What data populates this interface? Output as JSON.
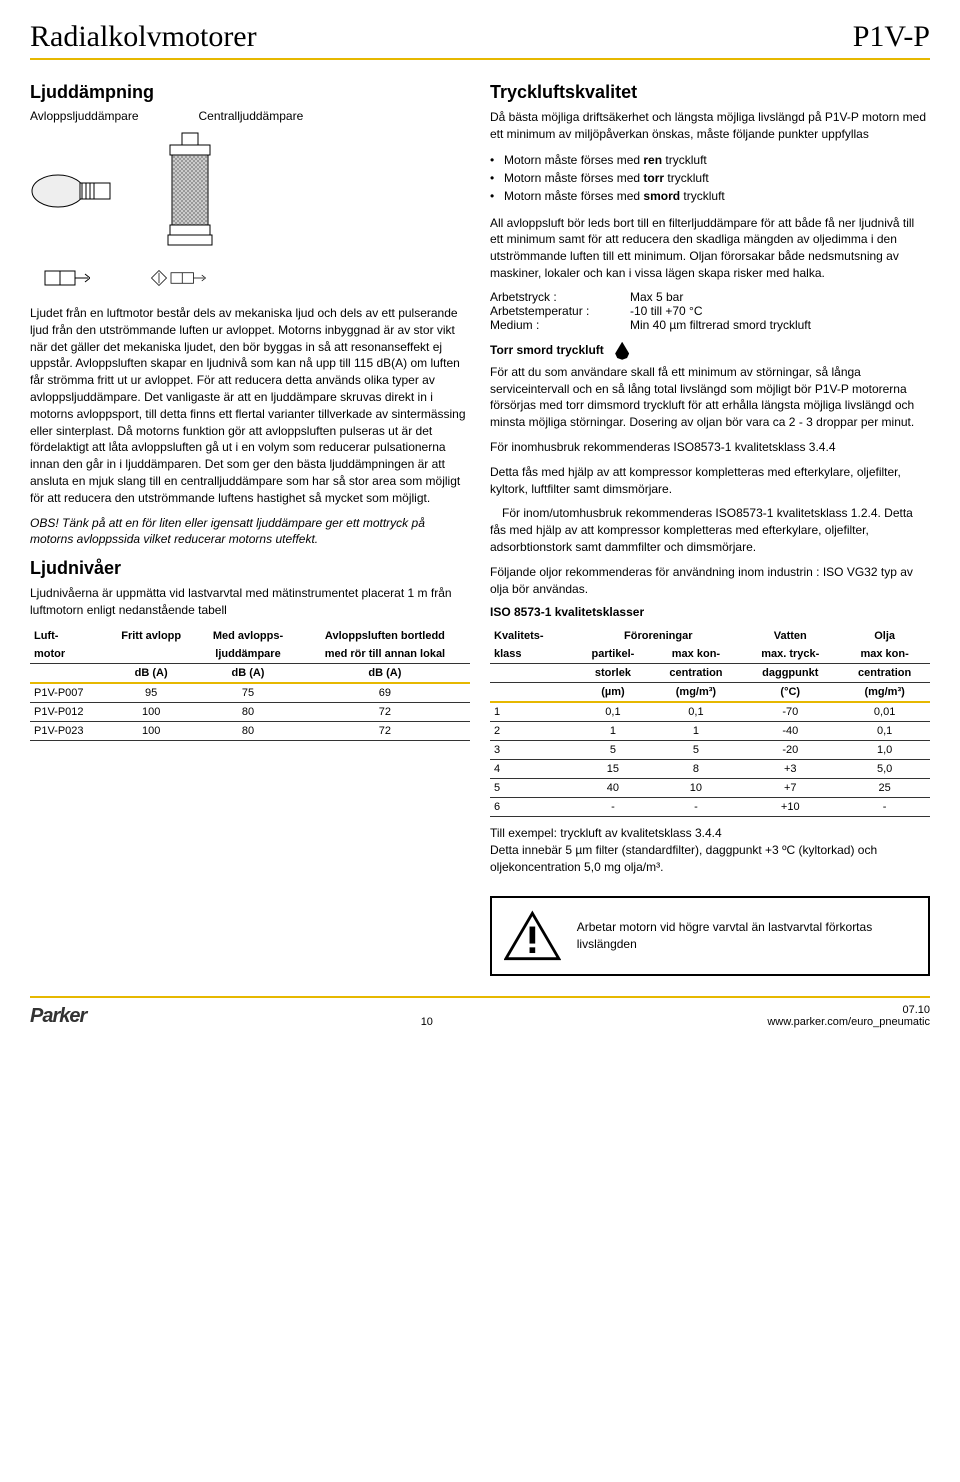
{
  "header": {
    "title": "Radialkolvmotorer",
    "code": "P1V-P"
  },
  "left": {
    "section1_title": "Ljuddämpning",
    "sub_label1": "Avloppsljuddämpare",
    "sub_label2": "Centralljuddämpare",
    "body1": "Ljudet från en luftmotor består dels av mekaniska ljud och dels av ett pulserande ljud från den utströmmande luften ur avloppet. Motorns inbyggnad är av stor vikt när det gäller det mekaniska ljudet, den bör byggas in så att resonanseffekt ej uppstår. Avloppsluften skapar en ljudnivå som kan nå upp till 115 dB(A) om luften får strömma fritt ut ur avloppet. För att reducera detta används olika typer av avloppsljuddämpare. Det vanligaste är att en ljuddämpare skruvas direkt in i motorns avloppsport, till detta finns ett flertal varianter tillverkade av sintermässing eller sinterplast. Då motorns funktion gör att avloppsluften pulseras ut är det fördelaktigt att låta avloppsluften gå ut i en volym som reducerar pulsationerna innan den går in i ljuddämparen. Det som ger den bästa ljuddämpningen är att ansluta en mjuk slang till en centralljuddämpare som har så stor area som möjligt för att reducera den utströmmande luftens hastighet så mycket som möjligt.",
    "obs": "OBS! Tänk på att en för liten eller igensatt ljuddämpare ger ett mottryck på motorns avloppssida vilket reducerar motorns uteffekt.",
    "section2_title": "Ljudnivåer",
    "body2": "Ljudnivåerna är uppmätta vid lastvarvtal med mätinstrumentet placerat 1 m från luftmotorn enligt nedanstående tabell",
    "noise_table": {
      "headers": {
        "col1a": "Luft-",
        "col1b": "motor",
        "col2a": "Fritt avlopp",
        "col2b": "dB (A)",
        "col3a": "Med avlopps-",
        "col3b": "ljuddämpare",
        "col3c": "dB (A)",
        "col4a": "Avloppsluften bortledd",
        "col4b": "med rör till annan lokal",
        "col4c": "dB (A)"
      },
      "rows": [
        {
          "m": "P1V-P007",
          "a": "95",
          "b": "75",
          "c": "69"
        },
        {
          "m": "P1V-P012",
          "a": "100",
          "b": "80",
          "c": "72"
        },
        {
          "m": "P1V-P023",
          "a": "100",
          "b": "80",
          "c": "72"
        }
      ]
    }
  },
  "right": {
    "section1_title": "Tryckluftskvalitet",
    "body1": "Då bästa möjliga driftsäkerhet och längsta möjliga livslängd på P1V-P motorn med ett minimum av miljöpåverkan önskas, måste följande punkter uppfyllas",
    "bullets": [
      "Motorn måste förses med ren tryckluft",
      "Motorn måste förses med torr tryckluft",
      "Motorn måste förses med smord tryckluft"
    ],
    "body2": "All avloppsluft bör leds bort till en filterljuddämpare för att både få ner ljudnivå till ett minimum samt för att reducera den skadliga mängden av oljedimma i den utströmmande luften till ett minimum. Oljan förorsakar både nedsmutsning av maskiner, lokaler och kan i vissa lägen skapa risker med halka.",
    "kv": [
      {
        "k": "Arbetstryck :",
        "v": "Max 5 bar"
      },
      {
        "k": "Arbetstemperatur :",
        "v": "-10 till +70 °C"
      },
      {
        "k": "Medium :",
        "v": "Min 40 µm filtrerad smord tryckluft"
      }
    ],
    "torr_heading": "Torr smord tryckluft",
    "body3": "För att du som användare skall få ett minimum av störningar, så långa serviceintervall och en så lång total livslängd som möjligt bör P1V-P motorerna försörjas med torr dimsmord tryckluft för att erhålla längsta möjliga livslängd och minsta möjliga störningar. Dosering av oljan bör vara ca 2 - 3 droppar per minut.",
    "body4a": "För inomhusbruk rekommenderas ISO8573-1 kvalitetsklass 3.4.4",
    "body4b": "Detta fås med hjälp av att kompressor kompletteras med efterkylare, oljefilter, kyltork, luftfilter samt dimsmörjare.",
    "body4c": "För inom/utomhusbruk rekommenderas ISO8573-1 kvalitetsklass 1.2.4. Detta fås med hjälp av att kompressor kompletteras med efterkylare, oljefilter, adsorbtionstork samt dammfilter och dimsmörjare.",
    "body5": "Följande oljor rekommenderas för användning inom industrin : ISO VG32 typ av olja bör användas.",
    "iso_heading": "ISO 8573-1 kvalitetsklasser",
    "iso_table": {
      "headers": {
        "c1a": "Kvalitets-",
        "c1b": "klass",
        "grp2": "Föroreningar",
        "c2a": "partikel-",
        "c2b": "storlek",
        "c2c": "(µm)",
        "c3a": "max kon-",
        "c3b": "centration",
        "c3c": "(mg/m³)",
        "c4t": "Vatten",
        "c4a": "max. tryck-",
        "c4b": "daggpunkt",
        "c4c": "(°C)",
        "c5t": "Olja",
        "c5a": "max kon-",
        "c5b": "centration",
        "c5c": "(mg/m³)"
      },
      "rows": [
        {
          "k": "1",
          "p": "0,1",
          "mc": "0,1",
          "v": "-70",
          "o": "0,01"
        },
        {
          "k": "2",
          "p": "1",
          "mc": "1",
          "v": "-40",
          "o": "0,1"
        },
        {
          "k": "3",
          "p": "5",
          "mc": "5",
          "v": "-20",
          "o": "1,0"
        },
        {
          "k": "4",
          "p": "15",
          "mc": "8",
          "v": "+3",
          "o": "5,0"
        },
        {
          "k": "5",
          "p": "40",
          "mc": "10",
          "v": "+7",
          "o": "25"
        },
        {
          "k": "6",
          "p": "-",
          "mc": "-",
          "v": "+10",
          "o": "-"
        }
      ]
    },
    "example": "Till exempel: tryckluft av kvalitetsklass 3.4.4\nDetta innebär 5 µm filter (standardfilter), daggpunkt +3 ºC (kyltorkad) och oljekoncentration 5,0 mg olja/m³.",
    "warning": "Arbetar motorn vid högre varvtal än lastvarvtal förkortas livslängden"
  },
  "footer": {
    "logo": "Parker",
    "page": "10",
    "date": "07.10",
    "url": "www.parker.com/euro_pneumatic"
  },
  "colors": {
    "accent": "#e6b800"
  }
}
